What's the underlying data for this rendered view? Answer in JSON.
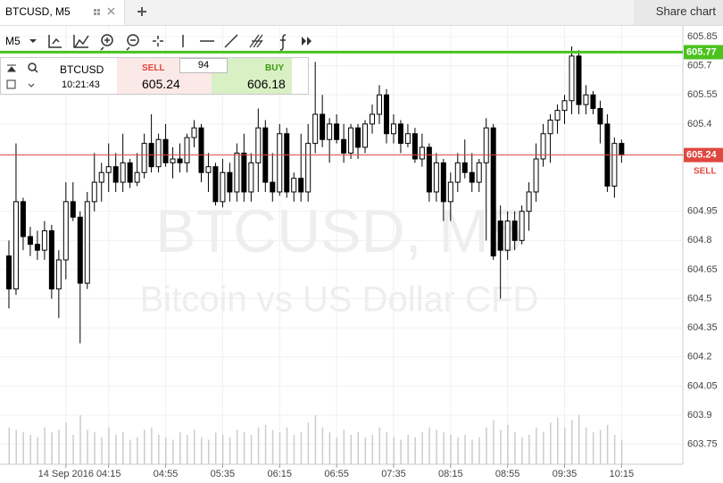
{
  "header": {
    "tab": "BTCUSD, M5",
    "share": "Share chart"
  },
  "toolbar": {
    "interval": "M5"
  },
  "trade": {
    "symbol": "BTCUSD",
    "time": "10:21:43",
    "sell_label": "SELL",
    "sell_price": "605.24",
    "spread": "94",
    "buy_label": "BUY",
    "buy_price": "606.18"
  },
  "chart_data": {
    "type": "candlestick",
    "watermark": [
      "BTCUSD, M5",
      "Bitcoin vs US Dollar CFD"
    ],
    "open": [
      604.72,
      604.55,
      605.0,
      604.82,
      604.78,
      604.75,
      604.85,
      604.55,
      604.7,
      605.0,
      604.92,
      604.58,
      605.0,
      605.1,
      605.15,
      605.18,
      605.1,
      605.2,
      605.1,
      605.15,
      605.3,
      605.18,
      605.32,
      605.2,
      605.22,
      605.2,
      605.33,
      605.38,
      605.15,
      605.18,
      605.0,
      605.15,
      605.05,
      605.25,
      605.05,
      605.2,
      605.38,
      605.1,
      605.05,
      605.35,
      605.05,
      605.12,
      605.05,
      605.3,
      605.45,
      605.32,
      605.4,
      605.32,
      605.25,
      605.38,
      605.28,
      605.4,
      605.45,
      605.55,
      605.35,
      605.4,
      605.3,
      605.35,
      605.22,
      605.28,
      605.05,
      605.2,
      605.0,
      605.1,
      605.2,
      605.15,
      605.1,
      605.2,
      605.38,
      604.9,
      604.75,
      604.9,
      604.8,
      604.95,
      605.05,
      605.22,
      605.35,
      605.42,
      605.47,
      605.52,
      605.75,
      605.5,
      605.55,
      605.48,
      605.4,
      605.08,
      605.3
    ],
    "high": [
      604.8,
      605.3,
      605.02,
      604.87,
      604.85,
      604.9,
      604.88,
      604.75,
      605.1,
      605.1,
      604.95,
      605.05,
      605.25,
      605.2,
      605.3,
      605.25,
      605.35,
      605.22,
      605.25,
      605.35,
      605.45,
      605.35,
      605.4,
      605.28,
      605.3,
      605.35,
      605.42,
      605.4,
      605.25,
      605.2,
      605.22,
      605.2,
      605.3,
      605.35,
      605.25,
      605.48,
      605.42,
      605.25,
      605.4,
      605.38,
      605.15,
      605.35,
      605.4,
      605.72,
      605.55,
      605.43,
      605.45,
      605.4,
      605.4,
      605.4,
      605.42,
      605.5,
      605.6,
      605.58,
      605.45,
      605.42,
      605.4,
      605.38,
      605.35,
      605.3,
      605.25,
      605.22,
      605.15,
      605.25,
      605.32,
      605.25,
      605.22,
      605.43,
      605.4,
      604.98,
      604.95,
      604.95,
      604.98,
      605.1,
      605.3,
      605.4,
      605.45,
      605.5,
      605.55,
      605.8,
      605.78,
      605.6,
      605.57,
      605.52,
      605.45,
      605.33,
      605.32
    ],
    "low": [
      604.45,
      604.52,
      604.75,
      604.72,
      604.7,
      604.7,
      604.5,
      604.4,
      604.6,
      604.9,
      604.27,
      604.55,
      604.95,
      605.0,
      605.05,
      605.05,
      605.05,
      605.07,
      605.08,
      605.12,
      605.15,
      605.15,
      605.18,
      605.12,
      605.15,
      605.15,
      605.28,
      605.1,
      605.05,
      604.98,
      604.97,
      605.0,
      605.0,
      605.0,
      605.0,
      605.05,
      605.05,
      605.0,
      605.03,
      605.02,
      605.0,
      605.0,
      605.0,
      605.25,
      605.28,
      605.2,
      605.3,
      605.2,
      605.22,
      605.22,
      605.25,
      605.35,
      605.4,
      605.3,
      605.3,
      605.25,
      605.28,
      605.2,
      605.18,
      605.0,
      605.0,
      604.9,
      604.9,
      605.05,
      605.12,
      605.05,
      605.05,
      604.8,
      604.7,
      604.5,
      604.7,
      604.75,
      604.78,
      604.85,
      605.0,
      605.18,
      605.2,
      605.35,
      605.4,
      605.45,
      605.45,
      605.45,
      605.45,
      605.3,
      605.05,
      605.02,
      605.2
    ],
    "close": [
      604.55,
      605.0,
      604.82,
      604.78,
      604.75,
      604.85,
      604.55,
      604.7,
      605.0,
      604.92,
      604.58,
      605.0,
      605.1,
      605.15,
      605.18,
      605.1,
      605.2,
      605.1,
      605.15,
      605.3,
      605.18,
      605.32,
      605.2,
      605.22,
      605.2,
      605.33,
      605.38,
      605.15,
      605.18,
      605.0,
      605.15,
      605.05,
      605.25,
      605.05,
      605.2,
      605.38,
      605.1,
      605.05,
      605.35,
      605.05,
      605.12,
      605.05,
      605.3,
      605.45,
      605.32,
      605.4,
      605.32,
      605.25,
      605.38,
      605.28,
      605.4,
      605.45,
      605.55,
      605.35,
      605.4,
      605.3,
      605.35,
      605.22,
      605.28,
      605.05,
      605.2,
      605.0,
      605.1,
      605.2,
      605.15,
      605.1,
      605.2,
      605.38,
      604.72,
      604.75,
      604.9,
      604.8,
      604.95,
      605.05,
      605.22,
      605.35,
      605.42,
      605.47,
      605.52,
      605.75,
      605.5,
      605.55,
      605.48,
      605.4,
      605.08,
      605.3,
      605.24
    ],
    "volume": [
      30,
      28,
      26,
      24,
      22,
      30,
      26,
      28,
      34,
      24,
      40,
      28,
      26,
      22,
      30,
      24,
      26,
      20,
      22,
      28,
      30,
      24,
      22,
      20,
      26,
      24,
      28,
      22,
      20,
      26,
      24,
      22,
      28,
      26,
      24,
      30,
      32,
      28,
      26,
      30,
      24,
      26,
      34,
      40,
      30,
      26,
      22,
      28,
      24,
      26,
      22,
      24,
      30,
      26,
      22,
      20,
      24,
      22,
      26,
      30,
      28,
      26,
      24,
      22,
      24,
      20,
      22,
      30,
      36,
      28,
      32,
      26,
      22,
      24,
      30,
      26,
      34,
      38,
      30,
      36,
      40,
      30,
      26,
      28,
      32,
      24,
      20
    ],
    "xlim": [
      -1.25,
      94.6
    ],
    "xticks": [
      {
        "value": 8,
        "label": "14 Sep 2016"
      },
      {
        "value": 14,
        "label": "04:15"
      },
      {
        "value": 22,
        "label": "04:55"
      },
      {
        "value": 30,
        "label": "05:35"
      },
      {
        "value": 38,
        "label": "06:15"
      },
      {
        "value": 46,
        "label": "06:55"
      },
      {
        "value": 54,
        "label": "07:35"
      },
      {
        "value": 62,
        "label": "08:15"
      },
      {
        "value": 70,
        "label": "08:55"
      },
      {
        "value": 78,
        "label": "09:35"
      },
      {
        "value": 86,
        "label": "10:15"
      }
    ],
    "ylim": [
      603.647,
      605.91
    ],
    "yticks": [
      605.85,
      605.7,
      605.55,
      605.4,
      605.25,
      604.95,
      604.8,
      604.65,
      604.5,
      604.35,
      604.2,
      604.05,
      603.9,
      603.75
    ],
    "lines": [
      {
        "value": 605.77,
        "label": "605.77",
        "color": "#4bc21e"
      },
      {
        "value": 605.24,
        "label": "605.24",
        "tag": "SELL",
        "color": "#e0473f"
      }
    ],
    "grid": true
  }
}
